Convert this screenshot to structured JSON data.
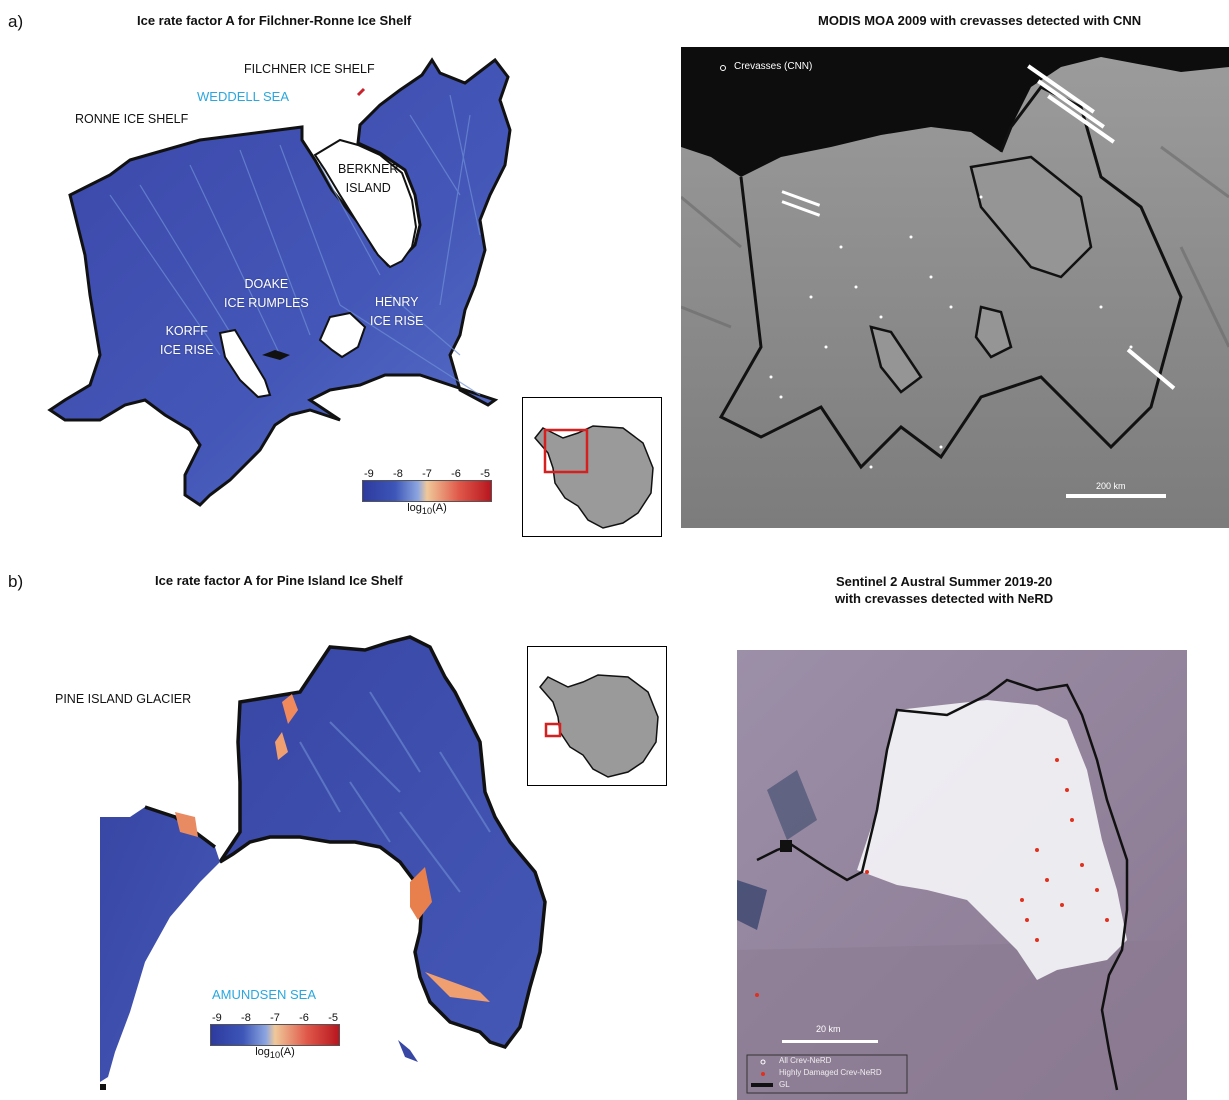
{
  "panel_a": {
    "letter": "a)",
    "left_title": "Ice rate factor A for Filchner-Ronne Ice Shelf",
    "right_title": "MODIS MOA 2009 with crevasses detected with CNN",
    "labels": {
      "filchner": "FILCHNER ICE SHELF",
      "weddell": "WEDDELL SEA",
      "ronne": "RONNE ICE SHELF",
      "berkner_1": "BERKNER",
      "berkner_2": "ISLAND",
      "doake_1": "DOAKE",
      "doake_2": "ICE RUMPLES",
      "henry_1": "HENRY",
      "henry_2": "ICE RISE",
      "korff_1": "KORFF",
      "korff_2": "ICE RISE"
    },
    "colorbar": {
      "ticks": [
        "-9",
        "-8",
        "-7",
        "-6",
        "-5"
      ],
      "unit_prefix": "log",
      "unit_sub": "10",
      "unit_suffix": "(A)"
    },
    "legend": "Crevasses (CNN)",
    "scalebar": "200 km"
  },
  "panel_b": {
    "letter": "b)",
    "left_title": "Ice rate factor A for Pine Island Ice Shelf",
    "right_title_1": "Sentinel 2 Austral Summer 2019-20",
    "right_title_2": "with crevasses detected with NeRD",
    "labels": {
      "pine_island": "PINE ISLAND GLACIER",
      "amundsen": "AMUNDSEN SEA"
    },
    "colorbar": {
      "ticks": [
        "-9",
        "-8",
        "-7",
        "-6",
        "-5"
      ],
      "unit_prefix": "log",
      "unit_sub": "10",
      "unit_suffix": "(A)"
    },
    "legend": [
      "All Crev-NeRD",
      "Highly Damaged Crev-NeRD",
      "GL"
    ],
    "scalebar": "20 km"
  },
  "colors": {
    "ice_blue": "#3f4fb0",
    "ice_light": "#6f8fd6",
    "ice_red": "#c8232c",
    "modis_bg": "#8a8a8a",
    "sentinel_bg": "#8d7c97",
    "crevasse_red": "#e0311f",
    "grounding_line": "#111111"
  }
}
